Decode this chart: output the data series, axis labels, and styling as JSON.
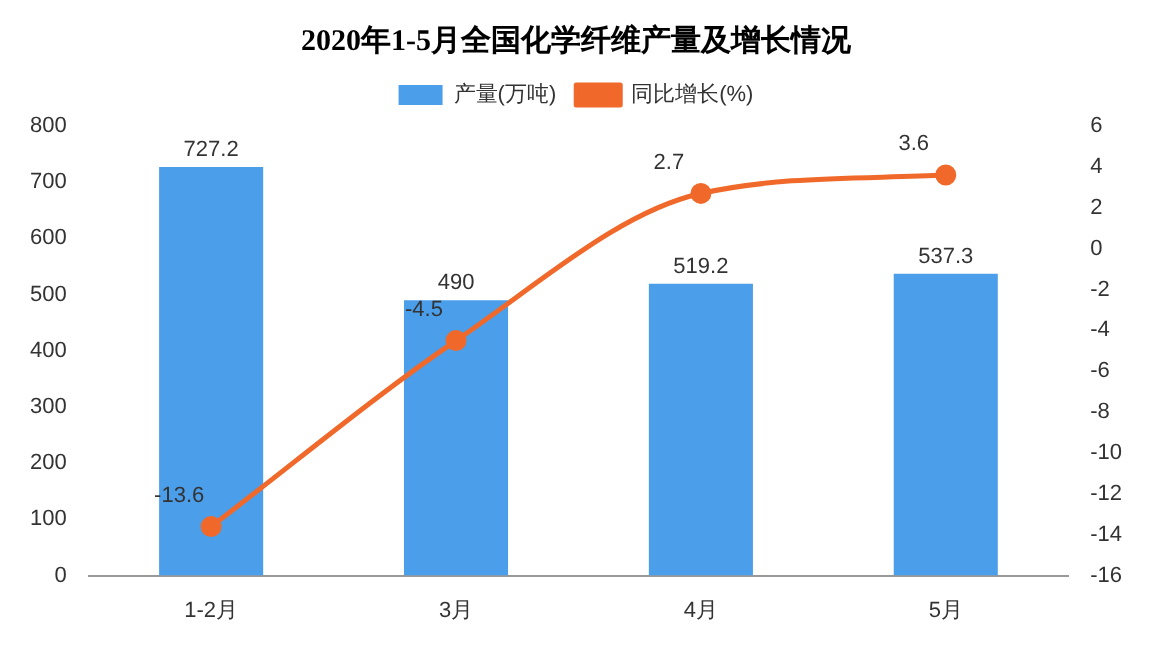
{
  "chart_data": {
    "type": "bar",
    "title": "2020年1-5月全国化学纤维产量及增长情况",
    "categories": [
      "1-2月",
      "3月",
      "4月",
      "5月"
    ],
    "series": [
      {
        "name": "产量(万吨)",
        "color": "#4b9ee9",
        "values": [
          727.2,
          490,
          519.2,
          537.3
        ]
      },
      {
        "name": "同比增长(%)",
        "type": "line",
        "axis": "y2",
        "color": "#f0692a",
        "values": [
          -13.6,
          -4.5,
          2.7,
          3.6
        ]
      }
    ],
    "ylim": [
      0,
      800
    ],
    "yticks": [
      0,
      100,
      200,
      300,
      400,
      500,
      600,
      700,
      800
    ],
    "y2lim": [
      -16,
      6
    ],
    "y2ticks": [
      -16,
      -14,
      -12,
      -10,
      -8,
      -6,
      -4,
      -2,
      0,
      2,
      4,
      6
    ],
    "data_labels": true,
    "legend": "top",
    "grid": false,
    "marker": "circle"
  }
}
